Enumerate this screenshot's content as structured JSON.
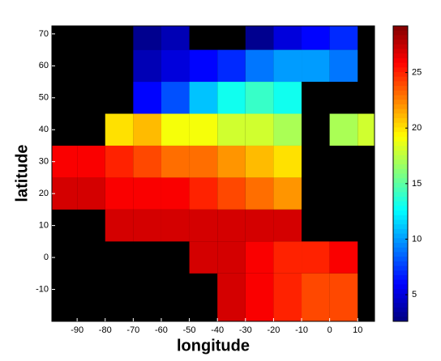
{
  "chart_data": {
    "type": "heatmap",
    "xlabel": "longitude",
    "ylabel": "latitude",
    "x": [
      -95,
      -85,
      -75,
      -65,
      -55,
      -45,
      -35,
      -25,
      -15,
      -5,
      5,
      15
    ],
    "y": [
      70,
      60,
      50,
      40,
      30,
      20,
      10,
      0,
      -10
    ],
    "values": [
      [
        null,
        null,
        null,
        3,
        4,
        null,
        null,
        3,
        5,
        6,
        7,
        null
      ],
      [
        null,
        null,
        null,
        4,
        5,
        6,
        7,
        9,
        10,
        10,
        9,
        null
      ],
      [
        null,
        null,
        null,
        6,
        8,
        11,
        13,
        14,
        13,
        null,
        null,
        null
      ],
      [
        null,
        null,
        20,
        21,
        19,
        19,
        18,
        18,
        17,
        null,
        17,
        18
      ],
      [
        26,
        26,
        25,
        24,
        23,
        23,
        22,
        21,
        20,
        null,
        null,
        null
      ],
      [
        27,
        27,
        26,
        26,
        26,
        25,
        24,
        23,
        22,
        null,
        null,
        null
      ],
      [
        null,
        null,
        27,
        27,
        27,
        27,
        27,
        27,
        27,
        null,
        null,
        null
      ],
      [
        null,
        null,
        null,
        null,
        null,
        27,
        27,
        26,
        25,
        25,
        26,
        null
      ],
      [
        null,
        null,
        null,
        null,
        null,
        null,
        27,
        26,
        25,
        24,
        24,
        null
      ]
    ],
    "xlim": [
      -99,
      16
    ],
    "ylim": [
      -20,
      72.5
    ],
    "xticks": [
      -90,
      -80,
      -70,
      -60,
      -50,
      -40,
      -30,
      -20,
      -10,
      0,
      10
    ],
    "yticks": [
      -10,
      0,
      10,
      20,
      30,
      40,
      50,
      60,
      70
    ],
    "clim": [
      2.6,
      29.2
    ],
    "cticks": [
      5,
      10,
      15,
      20,
      25
    ],
    "colormap": "jet",
    "land_color": "#000000"
  }
}
